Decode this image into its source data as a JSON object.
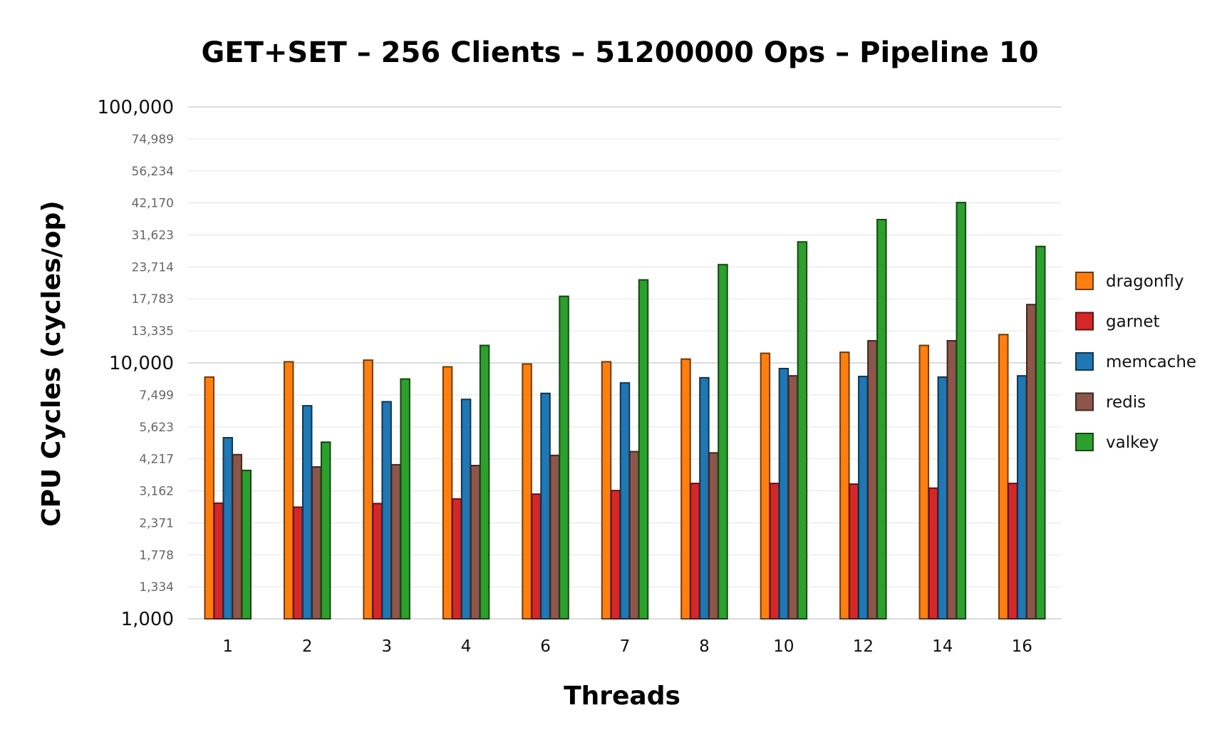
{
  "chart_data": {
    "type": "bar",
    "title": "GET+SET – 256 Clients – 51200000 Ops – Pipeline 10",
    "xlabel": "Threads",
    "ylabel": "CPU Cycles (cycles/op)",
    "yscale": "log",
    "ylim": [
      1000,
      100000
    ],
    "y_ticks_major": [
      {
        "value": 1000,
        "label": "1,000"
      },
      {
        "value": 10000,
        "label": "10,000"
      },
      {
        "value": 100000,
        "label": "100,000"
      }
    ],
    "y_ticks_minor": [
      {
        "value": 1334,
        "label": "1,334"
      },
      {
        "value": 1778,
        "label": "1,778"
      },
      {
        "value": 2371,
        "label": "2,371"
      },
      {
        "value": 3162,
        "label": "3,162"
      },
      {
        "value": 4217,
        "label": "4,217"
      },
      {
        "value": 5623,
        "label": "5,623"
      },
      {
        "value": 7499,
        "label": "7,499"
      },
      {
        "value": 13335,
        "label": "13,335"
      },
      {
        "value": 17783,
        "label": "17,783"
      },
      {
        "value": 23714,
        "label": "23,714"
      },
      {
        "value": 31623,
        "label": "31,623"
      },
      {
        "value": 42170,
        "label": "42,170"
      },
      {
        "value": 56234,
        "label": "56,234"
      },
      {
        "value": 74989,
        "label": "74,989"
      }
    ],
    "grid": true,
    "legend_position": "right",
    "categories": [
      "1",
      "2",
      "3",
      "4",
      "6",
      "7",
      "8",
      "10",
      "12",
      "14",
      "16"
    ],
    "series": [
      {
        "name": "dragonfly",
        "color": "#ff7f0e",
        "values": [
          8800,
          10100,
          10250,
          9650,
          9900,
          10100,
          10350,
          10900,
          11000,
          11700,
          12900
        ]
      },
      {
        "name": "garnet",
        "color": "#d62728",
        "values": [
          2830,
          2730,
          2820,
          2940,
          3070,
          3170,
          3380,
          3380,
          3360,
          3240,
          3380
        ]
      },
      {
        "name": "memcache",
        "color": "#1f77b4",
        "values": [
          5100,
          6800,
          7050,
          7200,
          7600,
          8350,
          8750,
          9500,
          8850,
          8800,
          8900
        ]
      },
      {
        "name": "redis",
        "color": "#8c564b",
        "values": [
          4380,
          3920,
          4000,
          3970,
          4350,
          4500,
          4450,
          8900,
          12200,
          12200,
          16900
        ]
      },
      {
        "name": "valkey",
        "color": "#2ca02c",
        "values": [
          3800,
          4900,
          8650,
          11700,
          18200,
          21100,
          24200,
          29700,
          36300,
          42300,
          28500
        ]
      }
    ]
  }
}
